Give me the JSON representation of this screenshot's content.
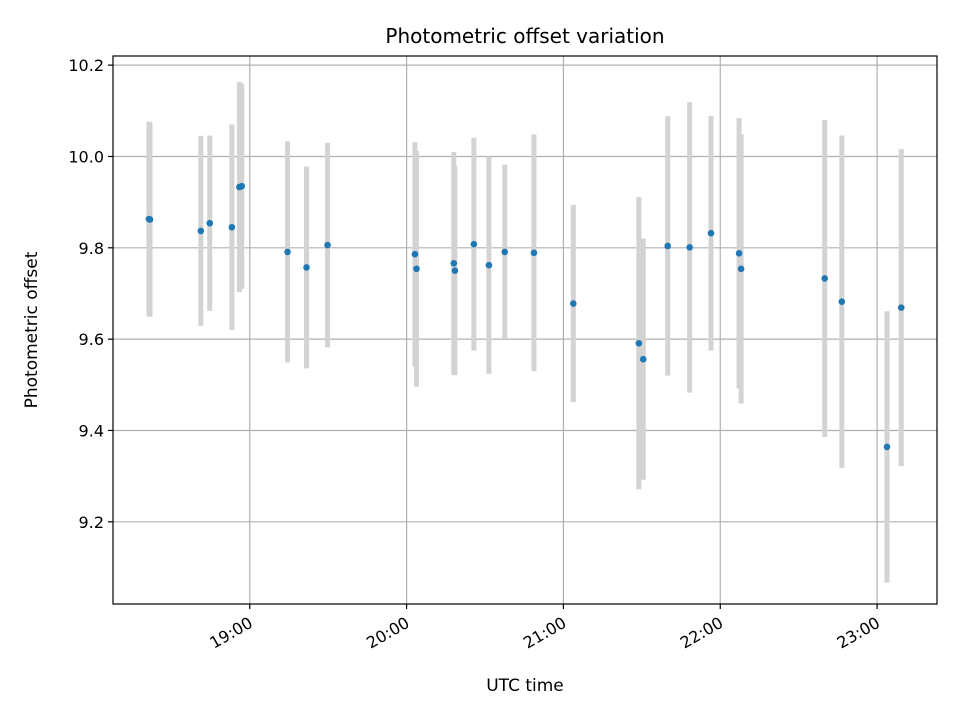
{
  "chart_data": {
    "type": "scatter",
    "title": "Photometric offset variation",
    "xlabel": "UTC time",
    "ylabel": "Photometric offset",
    "grid": true,
    "x_unit": "hours UTC",
    "xlim": [
      18.128,
      23.382
    ],
    "ylim": [
      9.02,
      10.22
    ],
    "x_ticks": [
      {
        "value": 19,
        "label": "19:00"
      },
      {
        "value": 20,
        "label": "20:00"
      },
      {
        "value": 21,
        "label": "21:00"
      },
      {
        "value": 22,
        "label": "22:00"
      },
      {
        "value": 23,
        "label": "23:00"
      }
    ],
    "y_ticks": [
      {
        "value": 9.2,
        "label": "9.2"
      },
      {
        "value": 9.4,
        "label": "9.4"
      },
      {
        "value": 9.6,
        "label": "9.6"
      },
      {
        "value": 9.8,
        "label": "9.8"
      },
      {
        "value": 10.0,
        "label": "10.0"
      },
      {
        "value": 10.2,
        "label": "10.2"
      }
    ],
    "point_color": "#1f77b4",
    "errorbar_color": "#d3d3d3",
    "points": [
      {
        "x": 18.357,
        "y": 9.863,
        "err": 0.213
      },
      {
        "x": 18.364,
        "y": 9.862,
        "err": 0.213
      },
      {
        "x": 18.688,
        "y": 9.837,
        "err": 0.208
      },
      {
        "x": 18.745,
        "y": 9.854,
        "err": 0.192
      },
      {
        "x": 18.886,
        "y": 9.845,
        "err": 0.225
      },
      {
        "x": 18.934,
        "y": 9.933,
        "err": 0.23
      },
      {
        "x": 18.949,
        "y": 9.935,
        "err": 0.225
      },
      {
        "x": 19.241,
        "y": 9.791,
        "err": 0.242
      },
      {
        "x": 19.362,
        "y": 9.757,
        "err": 0.221
      },
      {
        "x": 19.496,
        "y": 9.806,
        "err": 0.224
      },
      {
        "x": 20.053,
        "y": 9.786,
        "err": 0.245
      },
      {
        "x": 20.063,
        "y": 9.754,
        "err": 0.258
      },
      {
        "x": 20.301,
        "y": 9.766,
        "err": 0.244
      },
      {
        "x": 20.308,
        "y": 9.75,
        "err": 0.229
      },
      {
        "x": 20.429,
        "y": 9.808,
        "err": 0.233
      },
      {
        "x": 20.525,
        "y": 9.762,
        "err": 0.238
      },
      {
        "x": 20.626,
        "y": 9.791,
        "err": 0.191
      },
      {
        "x": 20.812,
        "y": 9.789,
        "err": 0.259
      },
      {
        "x": 21.063,
        "y": 9.678,
        "err": 0.216
      },
      {
        "x": 21.481,
        "y": 9.591,
        "err": 0.32
      },
      {
        "x": 21.509,
        "y": 9.556,
        "err": 0.264
      },
      {
        "x": 21.665,
        "y": 9.804,
        "err": 0.284
      },
      {
        "x": 21.805,
        "y": 9.801,
        "err": 0.318
      },
      {
        "x": 21.941,
        "y": 9.832,
        "err": 0.257
      },
      {
        "x": 22.12,
        "y": 9.788,
        "err": 0.296
      },
      {
        "x": 22.133,
        "y": 9.754,
        "err": 0.295
      },
      {
        "x": 22.666,
        "y": 9.733,
        "err": 0.347
      },
      {
        "x": 22.775,
        "y": 9.682,
        "err": 0.364
      },
      {
        "x": 23.063,
        "y": 9.364,
        "err": 0.297
      },
      {
        "x": 23.154,
        "y": 9.669,
        "err": 0.347
      }
    ]
  }
}
